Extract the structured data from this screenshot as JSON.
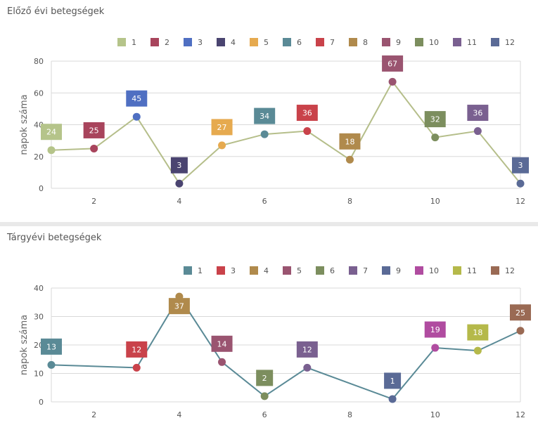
{
  "chart_data": [
    {
      "type": "line",
      "title": "Előző évi betegségek",
      "xlabel": "",
      "ylabel": "napok száma",
      "xlim": [
        1,
        12
      ],
      "ylim": [
        0,
        80
      ],
      "yticks": [
        0,
        20,
        40,
        60,
        80
      ],
      "xticks": [
        2,
        4,
        6,
        8,
        10,
        12
      ],
      "line_color": "#b5be8a",
      "legend_position": "top-right",
      "legend": [
        {
          "label": "1",
          "color": "#b5c48a"
        },
        {
          "label": "2",
          "color": "#a8445c"
        },
        {
          "label": "3",
          "color": "#4f6fc2"
        },
        {
          "label": "4",
          "color": "#4a4470"
        },
        {
          "label": "5",
          "color": "#e6aa4f"
        },
        {
          "label": "6",
          "color": "#5a8a96"
        },
        {
          "label": "7",
          "color": "#c9424a"
        },
        {
          "label": "8",
          "color": "#b08a4c"
        },
        {
          "label": "9",
          "color": "#9a5470"
        },
        {
          "label": "10",
          "color": "#7c8e5e"
        },
        {
          "label": "11",
          "color": "#7a6090"
        },
        {
          "label": "12",
          "color": "#5a6a96"
        }
      ],
      "points": [
        {
          "x": 1,
          "y": 24,
          "color": "#b5c48a"
        },
        {
          "x": 2,
          "y": 25,
          "color": "#a8445c"
        },
        {
          "x": 3,
          "y": 45,
          "color": "#4f6fc2"
        },
        {
          "x": 4,
          "y": 3,
          "color": "#4a4470"
        },
        {
          "x": 5,
          "y": 27,
          "color": "#e6aa4f"
        },
        {
          "x": 6,
          "y": 34,
          "color": "#5a8a96"
        },
        {
          "x": 7,
          "y": 36,
          "color": "#c9424a"
        },
        {
          "x": 8,
          "y": 18,
          "color": "#b08a4c"
        },
        {
          "x": 9,
          "y": 67,
          "color": "#9a5470"
        },
        {
          "x": 10,
          "y": 32,
          "color": "#7c8e5e"
        },
        {
          "x": 11,
          "y": 36,
          "color": "#7a6090"
        },
        {
          "x": 12,
          "y": 3,
          "color": "#5a6a96"
        }
      ]
    },
    {
      "type": "line",
      "title": "Tárgyévi betegségek",
      "xlabel": "",
      "ylabel": "napok száma",
      "xlim": [
        1,
        12
      ],
      "ylim": [
        0,
        40
      ],
      "yticks": [
        0,
        10,
        20,
        30,
        40
      ],
      "xticks": [
        2,
        4,
        6,
        8,
        10,
        12
      ],
      "line_color": "#5a8a96",
      "legend_position": "top-right",
      "legend": [
        {
          "label": "1",
          "color": "#5a8a96"
        },
        {
          "label": "3",
          "color": "#c9424a"
        },
        {
          "label": "4",
          "color": "#b08a4c"
        },
        {
          "label": "5",
          "color": "#9a5470"
        },
        {
          "label": "6",
          "color": "#7c8e5e"
        },
        {
          "label": "7",
          "color": "#7a6090"
        },
        {
          "label": "9",
          "color": "#5a6a96"
        },
        {
          "label": "10",
          "color": "#b04ca0"
        },
        {
          "label": "11",
          "color": "#b5b94a"
        },
        {
          "label": "12",
          "color": "#9a6a54"
        }
      ],
      "points": [
        {
          "x": 1,
          "y": 13,
          "color": "#5a8a96"
        },
        {
          "x": 3,
          "y": 12,
          "color": "#c9424a"
        },
        {
          "x": 4,
          "y": 37,
          "color": "#b08a4c"
        },
        {
          "x": 5,
          "y": 14,
          "color": "#9a5470"
        },
        {
          "x": 6,
          "y": 2,
          "color": "#7c8e5e"
        },
        {
          "x": 7,
          "y": 12,
          "color": "#7a6090"
        },
        {
          "x": 9,
          "y": 1,
          "color": "#5a6a96"
        },
        {
          "x": 10,
          "y": 19,
          "color": "#b04ca0"
        },
        {
          "x": 11,
          "y": 18,
          "color": "#b5b94a"
        },
        {
          "x": 12,
          "y": 25,
          "color": "#9a6a54"
        }
      ]
    }
  ]
}
